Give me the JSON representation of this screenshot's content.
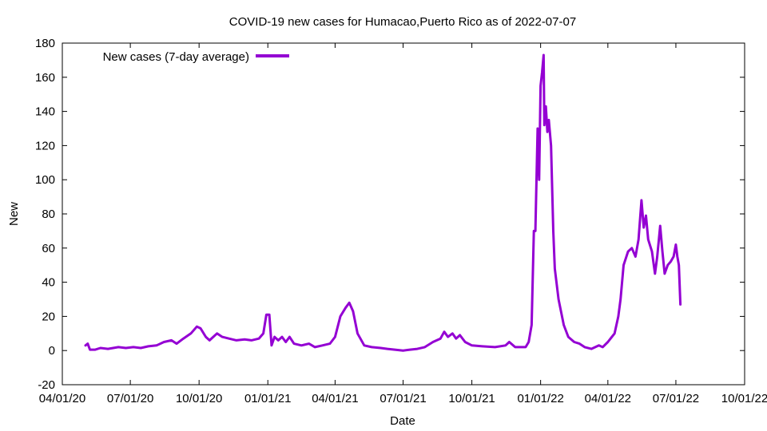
{
  "chart_data": {
    "type": "line",
    "title": "COVID-19 new cases for Humacao,Puerto Rico as of 2022-07-07",
    "xlabel": "Date",
    "ylabel": "New",
    "x_type": "date",
    "xlim": [
      "2020-04-01",
      "2022-10-01"
    ],
    "ylim": [
      -20,
      180
    ],
    "yticks": [
      -20,
      0,
      20,
      40,
      60,
      80,
      100,
      120,
      140,
      160,
      180
    ],
    "xticks": [
      "2020-04-01",
      "2020-07-01",
      "2020-10-01",
      "2021-01-01",
      "2021-04-01",
      "2021-07-01",
      "2021-10-01",
      "2022-01-01",
      "2022-04-01",
      "2022-07-01",
      "2022-10-01"
    ],
    "xtick_labels": [
      "04/01/20",
      "07/01/20",
      "10/01/20",
      "01/01/21",
      "04/01/21",
      "07/01/21",
      "10/01/21",
      "01/01/22",
      "04/01/22",
      "07/01/22",
      "10/01/22"
    ],
    "grid": false,
    "legend_position": "top-left",
    "series": [
      {
        "name": "New cases (7-day average)",
        "color": "#9400d3",
        "points": [
          [
            "2020-05-02",
            3
          ],
          [
            "2020-05-05",
            4
          ],
          [
            "2020-05-08",
            0.5
          ],
          [
            "2020-05-15",
            0.5
          ],
          [
            "2020-05-22",
            1.5
          ],
          [
            "2020-06-01",
            1
          ],
          [
            "2020-06-15",
            2
          ],
          [
            "2020-06-25",
            1.5
          ],
          [
            "2020-07-05",
            2
          ],
          [
            "2020-07-15",
            1.5
          ],
          [
            "2020-07-25",
            2.5
          ],
          [
            "2020-08-05",
            3
          ],
          [
            "2020-08-15",
            5
          ],
          [
            "2020-08-25",
            6
          ],
          [
            "2020-09-01",
            4
          ],
          [
            "2020-09-10",
            7
          ],
          [
            "2020-09-20",
            10
          ],
          [
            "2020-09-28",
            14
          ],
          [
            "2020-10-03",
            13
          ],
          [
            "2020-10-10",
            8
          ],
          [
            "2020-10-15",
            6
          ],
          [
            "2020-10-20",
            8
          ],
          [
            "2020-10-25",
            10
          ],
          [
            "2020-11-01",
            8
          ],
          [
            "2020-11-10",
            7
          ],
          [
            "2020-11-20",
            6
          ],
          [
            "2020-12-01",
            6.5
          ],
          [
            "2020-12-10",
            6
          ],
          [
            "2020-12-20",
            7
          ],
          [
            "2020-12-26",
            10
          ],
          [
            "2020-12-30",
            21
          ],
          [
            "2021-01-03",
            21
          ],
          [
            "2021-01-06",
            3
          ],
          [
            "2021-01-10",
            8
          ],
          [
            "2021-01-15",
            6
          ],
          [
            "2021-01-20",
            8
          ],
          [
            "2021-01-25",
            5
          ],
          [
            "2021-01-30",
            8
          ],
          [
            "2021-02-05",
            4
          ],
          [
            "2021-02-15",
            3
          ],
          [
            "2021-02-25",
            4
          ],
          [
            "2021-03-05",
            2
          ],
          [
            "2021-03-15",
            3
          ],
          [
            "2021-03-25",
            4
          ],
          [
            "2021-04-01",
            8
          ],
          [
            "2021-04-08",
            20
          ],
          [
            "2021-04-15",
            25
          ],
          [
            "2021-04-20",
            28
          ],
          [
            "2021-04-25",
            23
          ],
          [
            "2021-05-01",
            10
          ],
          [
            "2021-05-10",
            3
          ],
          [
            "2021-05-20",
            2
          ],
          [
            "2021-06-01",
            1.5
          ],
          [
            "2021-06-10",
            1
          ],
          [
            "2021-06-20",
            0.5
          ],
          [
            "2021-07-01",
            0
          ],
          [
            "2021-07-10",
            0.5
          ],
          [
            "2021-07-20",
            1
          ],
          [
            "2021-07-30",
            2
          ],
          [
            "2021-08-10",
            5
          ],
          [
            "2021-08-20",
            7
          ],
          [
            "2021-08-25",
            11
          ],
          [
            "2021-08-30",
            8
          ],
          [
            "2021-09-05",
            10
          ],
          [
            "2021-09-10",
            7
          ],
          [
            "2021-09-15",
            9
          ],
          [
            "2021-09-22",
            5
          ],
          [
            "2021-10-01",
            3
          ],
          [
            "2021-10-15",
            2.5
          ],
          [
            "2021-11-01",
            2
          ],
          [
            "2021-11-15",
            3
          ],
          [
            "2021-11-20",
            5
          ],
          [
            "2021-11-28",
            2
          ],
          [
            "2021-12-05",
            2
          ],
          [
            "2021-12-12",
            2
          ],
          [
            "2021-12-16",
            5
          ],
          [
            "2021-12-20",
            15
          ],
          [
            "2021-12-23",
            70
          ],
          [
            "2021-12-25",
            70
          ],
          [
            "2021-12-28",
            130
          ],
          [
            "2021-12-30",
            100
          ],
          [
            "2022-01-01",
            155
          ],
          [
            "2022-01-03",
            163
          ],
          [
            "2022-01-05",
            173
          ],
          [
            "2022-01-06",
            132
          ],
          [
            "2022-01-08",
            143
          ],
          [
            "2022-01-10",
            128
          ],
          [
            "2022-01-12",
            135
          ],
          [
            "2022-01-15",
            120
          ],
          [
            "2022-01-18",
            70
          ],
          [
            "2022-01-20",
            48
          ],
          [
            "2022-01-25",
            30
          ],
          [
            "2022-02-01",
            15
          ],
          [
            "2022-02-07",
            8
          ],
          [
            "2022-02-15",
            5
          ],
          [
            "2022-02-22",
            4
          ],
          [
            "2022-03-01",
            2
          ],
          [
            "2022-03-10",
            1
          ],
          [
            "2022-03-20",
            3
          ],
          [
            "2022-03-25",
            2
          ],
          [
            "2022-04-01",
            5
          ],
          [
            "2022-04-10",
            10
          ],
          [
            "2022-04-15",
            20
          ],
          [
            "2022-04-18",
            30
          ],
          [
            "2022-04-22",
            50
          ],
          [
            "2022-04-28",
            58
          ],
          [
            "2022-05-03",
            60
          ],
          [
            "2022-05-08",
            55
          ],
          [
            "2022-05-12",
            65
          ],
          [
            "2022-05-16",
            88
          ],
          [
            "2022-05-19",
            72
          ],
          [
            "2022-05-22",
            79
          ],
          [
            "2022-05-25",
            65
          ],
          [
            "2022-05-30",
            58
          ],
          [
            "2022-06-03",
            45
          ],
          [
            "2022-06-06",
            55
          ],
          [
            "2022-06-10",
            73
          ],
          [
            "2022-06-13",
            58
          ],
          [
            "2022-06-16",
            45
          ],
          [
            "2022-06-20",
            50
          ],
          [
            "2022-06-24",
            52
          ],
          [
            "2022-06-28",
            55
          ],
          [
            "2022-07-01",
            62
          ],
          [
            "2022-07-03",
            55
          ],
          [
            "2022-07-05",
            50
          ],
          [
            "2022-07-07",
            27
          ]
        ]
      }
    ]
  }
}
